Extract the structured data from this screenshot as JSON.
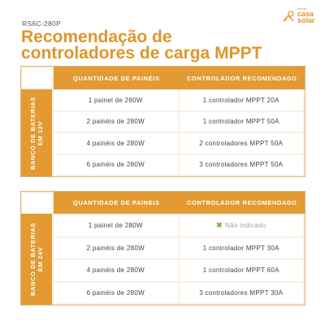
{
  "model": "RS6C-280P",
  "title": {
    "line1": "Recomendação de",
    "line2": "controladores de carga MPPT"
  },
  "logo": {
    "line1": "minha",
    "line2": "casa",
    "line3": "solar",
    "icon": "sun-house-icon",
    "color": "#e0952b"
  },
  "colors": {
    "accent": "#e39a33",
    "title": "#e0952b",
    "table_bg": "#fbeee0",
    "check_green": "#8aa83a"
  },
  "headers": {
    "col1": "QUANTIDADE DE PAINÉIS",
    "col2": "CONTROLADOR RECOMENDADO"
  },
  "tables": [
    {
      "side_line1": "BANCO DE BATERIAS",
      "side_line2": "EM 12V",
      "rows": [
        {
          "panels": "1 painel de 280W",
          "controller": "1 controlador MPPT 20A"
        },
        {
          "panels": "2 painéis de 280W",
          "controller": "1 controlador MPPT 50A"
        },
        {
          "panels": "4 painéis de 280W",
          "controller": "2 controladores MPPT 50A"
        },
        {
          "panels": "6 painéis de 280W",
          "controller": "3 controladores MPPT 50A"
        }
      ]
    },
    {
      "side_line1": "BANCO DE BATERIAS",
      "side_line2": "EM 24V",
      "rows": [
        {
          "panels": "1 painel de 280W",
          "controller": "Não indicado"
        },
        {
          "panels": "2 painéis de 280W",
          "controller": "1 controlador MPPT 30A"
        },
        {
          "panels": "4 painéis de 280W",
          "controller": "1 controlador MPPT 60A"
        },
        {
          "panels": "6 painéis de 280W",
          "controller": "3 controladores MPPT 30A"
        }
      ]
    }
  ]
}
